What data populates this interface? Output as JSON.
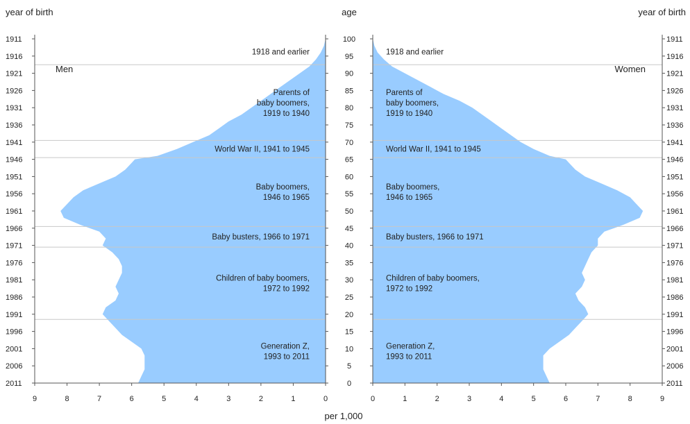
{
  "chart_data": {
    "type": "area",
    "headers": {
      "left": "year of birth",
      "center": "age",
      "right": "year of birth"
    },
    "x_label": "per 1,000",
    "men_label": "Men",
    "women_label": "Women",
    "year_ticks": [
      1911,
      1916,
      1921,
      1926,
      1931,
      1936,
      1941,
      1946,
      1951,
      1956,
      1961,
      1966,
      1971,
      1976,
      1981,
      1986,
      1991,
      1996,
      2001,
      2006,
      2011
    ],
    "age_ticks": [
      100,
      95,
      90,
      85,
      80,
      75,
      70,
      65,
      60,
      55,
      50,
      45,
      40,
      35,
      30,
      25,
      20,
      15,
      10,
      5,
      0
    ],
    "men_x_ticks": [
      9,
      8,
      7,
      6,
      5,
      4,
      3,
      2,
      1,
      0
    ],
    "women_x_ticks": [
      0,
      1,
      2,
      3,
      4,
      5,
      6,
      7,
      8,
      9
    ],
    "xlim": [
      0,
      9
    ],
    "ylim": [
      0,
      100
    ],
    "generations": [
      {
        "label_lines": [
          "1918 and earlier"
        ],
        "age_from": 92.5,
        "age_to": 100
      },
      {
        "label_lines": [
          "Parents of",
          "baby boomers,",
          "1919 to 1940"
        ],
        "age_from": 70.5,
        "age_to": 92.5
      },
      {
        "label_lines": [
          "World War II, 1941 to 1945"
        ],
        "age_from": 65.5,
        "age_to": 70.5
      },
      {
        "label_lines": [
          "Baby boomers,",
          "1946 to 1965"
        ],
        "age_from": 45.5,
        "age_to": 65.5
      },
      {
        "label_lines": [
          "Baby busters, 1966 to 1971"
        ],
        "age_from": 39.5,
        "age_to": 45.5
      },
      {
        "label_lines": [
          "Children of baby boomers,",
          "1972 to 1992"
        ],
        "age_from": 18.5,
        "age_to": 39.5
      },
      {
        "label_lines": [
          "Generation Z,",
          "1993 to 2011"
        ],
        "age_from": 0,
        "age_to": 18.5
      }
    ],
    "series": [
      {
        "name": "Men",
        "age": [
          0,
          2,
          4,
          6,
          8,
          10,
          12,
          14,
          16,
          18,
          20,
          22,
          24,
          26,
          28,
          30,
          32,
          34,
          36,
          38,
          40,
          42,
          44,
          46,
          48,
          50,
          52,
          54,
          56,
          58,
          60,
          62,
          64,
          65,
          66,
          68,
          70,
          72,
          74,
          76,
          78,
          80,
          82,
          84,
          86,
          88,
          90,
          92,
          94,
          96,
          98,
          100
        ],
        "values": [
          5.8,
          5.7,
          5.6,
          5.6,
          5.6,
          5.7,
          6.0,
          6.3,
          6.5,
          6.7,
          6.9,
          6.8,
          6.5,
          6.4,
          6.5,
          6.4,
          6.3,
          6.3,
          6.4,
          6.6,
          6.9,
          6.8,
          7.0,
          7.6,
          8.1,
          8.2,
          8.0,
          7.8,
          7.5,
          7.0,
          6.5,
          6.2,
          6.0,
          5.9,
          5.2,
          4.6,
          4.1,
          3.6,
          3.3,
          3.0,
          2.6,
          2.3,
          2.0,
          1.7,
          1.4,
          1.1,
          0.8,
          0.5,
          0.3,
          0.15,
          0.05,
          0.0
        ]
      },
      {
        "name": "Women",
        "age": [
          0,
          2,
          4,
          6,
          8,
          10,
          12,
          14,
          16,
          18,
          20,
          22,
          24,
          26,
          28,
          30,
          32,
          34,
          36,
          38,
          40,
          42,
          44,
          46,
          48,
          50,
          52,
          54,
          56,
          58,
          60,
          62,
          64,
          65,
          66,
          68,
          70,
          72,
          74,
          76,
          78,
          80,
          82,
          84,
          86,
          88,
          90,
          92,
          94,
          96,
          98,
          100
        ],
        "values": [
          5.5,
          5.4,
          5.3,
          5.3,
          5.3,
          5.5,
          5.8,
          6.1,
          6.3,
          6.5,
          6.7,
          6.6,
          6.4,
          6.3,
          6.5,
          6.6,
          6.5,
          6.6,
          6.7,
          6.8,
          7.0,
          7.0,
          7.2,
          7.8,
          8.3,
          8.4,
          8.2,
          8.0,
          7.6,
          7.1,
          6.6,
          6.3,
          6.1,
          6.0,
          5.5,
          5.0,
          4.6,
          4.3,
          4.0,
          3.7,
          3.4,
          3.1,
          2.7,
          2.2,
          1.8,
          1.4,
          1.0,
          0.6,
          0.35,
          0.15,
          0.05,
          0.0
        ]
      }
    ],
    "colors": {
      "fill": "#99ccff",
      "divider": "#c8c8c8",
      "text": "#222222"
    }
  }
}
